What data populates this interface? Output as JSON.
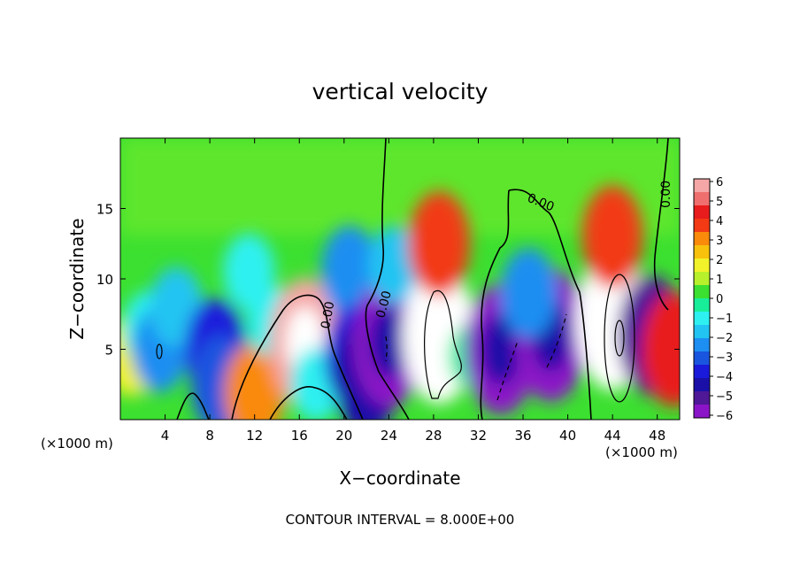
{
  "chart_data": {
    "type": "heatmap",
    "title": "vertical velocity",
    "xlabel": "X−coordinate",
    "ylabel": "Z−coordinate",
    "x_unit_left": "(×1000 m)",
    "x_unit_right": "(×1000 m)",
    "footnote": "CONTOUR INTERVAL = 8.000E+00",
    "xlim": [
      0,
      50
    ],
    "ylim": [
      0,
      20
    ],
    "x_ticks": [
      4,
      8,
      12,
      16,
      20,
      24,
      28,
      32,
      36,
      40,
      44,
      48
    ],
    "y_ticks": [
      5,
      10,
      15
    ],
    "colorbar": {
      "ticks": [
        6,
        5,
        4,
        3,
        2,
        1,
        0,
        "−1",
        "−2",
        "−3",
        "−4",
        "−5",
        "−6"
      ],
      "colors": [
        "#f5a6a6",
        "#ef6f6f",
        "#e81c1c",
        "#f23a14",
        "#f98a0a",
        "#f8c20c",
        "#f2f22a",
        "#b8f02c",
        "#3ce030",
        "#18ee9a",
        "#2ef0f0",
        "#22c4f2",
        "#1d8ef2",
        "#1a55e0",
        "#1a1adb",
        "#1a10a8",
        "#4f1896",
        "#8c14c8"
      ]
    },
    "contour_label": "0.00",
    "cells": [
      {
        "x": 1,
        "z": 4.5,
        "w": 1.6
      },
      {
        "x": 2.5,
        "z": 6.5,
        "w": -1.2
      },
      {
        "x": 3.5,
        "z": 5,
        "w": -2.1
      },
      {
        "x": 5,
        "z": 8,
        "w": -1.6
      },
      {
        "x": 8.5,
        "z": 5,
        "w": -3.4
      },
      {
        "x": 9,
        "z": 2.5,
        "w": -3.1
      },
      {
        "x": 11.5,
        "z": 10.5,
        "w": -1.3
      },
      {
        "x": 12,
        "z": 1.9,
        "w": 3.2
      },
      {
        "x": 13.5,
        "z": 7,
        "w": -0.9
      },
      {
        "x": 16.5,
        "z": 5.5,
        "w": 5.5
      },
      {
        "x": 17.5,
        "z": 2.5,
        "w": -1.1
      },
      {
        "x": 20.5,
        "z": 10.5,
        "w": -2.6
      },
      {
        "x": 21,
        "z": 4.5,
        "w": -3.6
      },
      {
        "x": 22,
        "z": 3,
        "w": -4.5
      },
      {
        "x": 24,
        "z": 5.5,
        "w": -5.6
      },
      {
        "x": 24.5,
        "z": 11,
        "w": -1.4
      },
      {
        "x": 28.5,
        "z": 6,
        "w": 6.2
      },
      {
        "x": 28.5,
        "z": 12.5,
        "w": 3.6
      },
      {
        "x": 31.5,
        "z": 4.5,
        "w": -0.6
      },
      {
        "x": 34,
        "z": 5,
        "w": -5.7
      },
      {
        "x": 38.5,
        "z": 6,
        "w": -5.9
      },
      {
        "x": 36.5,
        "z": 9,
        "w": -2.4
      },
      {
        "x": 44,
        "z": 7,
        "w": 6.3
      },
      {
        "x": 44,
        "z": 13,
        "w": 3.4
      },
      {
        "x": 47.5,
        "z": 6,
        "w": -4.8
      },
      {
        "x": 49.5,
        "z": 5,
        "w": 4.4
      }
    ]
  }
}
